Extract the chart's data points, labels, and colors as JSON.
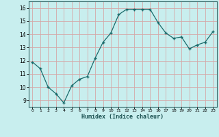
{
  "x": [
    0,
    1,
    2,
    3,
    4,
    5,
    6,
    7,
    8,
    9,
    10,
    11,
    12,
    13,
    14,
    15,
    16,
    17,
    18,
    19,
    20,
    21,
    22,
    23
  ],
  "y": [
    11.9,
    11.4,
    10.0,
    9.5,
    8.8,
    10.1,
    10.6,
    10.8,
    12.2,
    13.4,
    14.1,
    15.5,
    15.9,
    15.9,
    15.9,
    15.9,
    14.9,
    14.1,
    13.7,
    13.8,
    12.9,
    13.2,
    13.4,
    14.2
  ],
  "line_color": "#1a6b6b",
  "marker_color": "#1a6b6b",
  "bg_color": "#c8eeee",
  "grid_color": "#d4a8a8",
  "xlabel": "Humidex (Indice chaleur)",
  "ylim": [
    8.5,
    16.5
  ],
  "xlim": [
    -0.5,
    23.5
  ],
  "yticks": [
    9,
    10,
    11,
    12,
    13,
    14,
    15,
    16
  ],
  "xticks": [
    0,
    1,
    2,
    3,
    4,
    5,
    6,
    7,
    8,
    9,
    10,
    11,
    12,
    13,
    14,
    15,
    16,
    17,
    18,
    19,
    20,
    21,
    22,
    23
  ]
}
